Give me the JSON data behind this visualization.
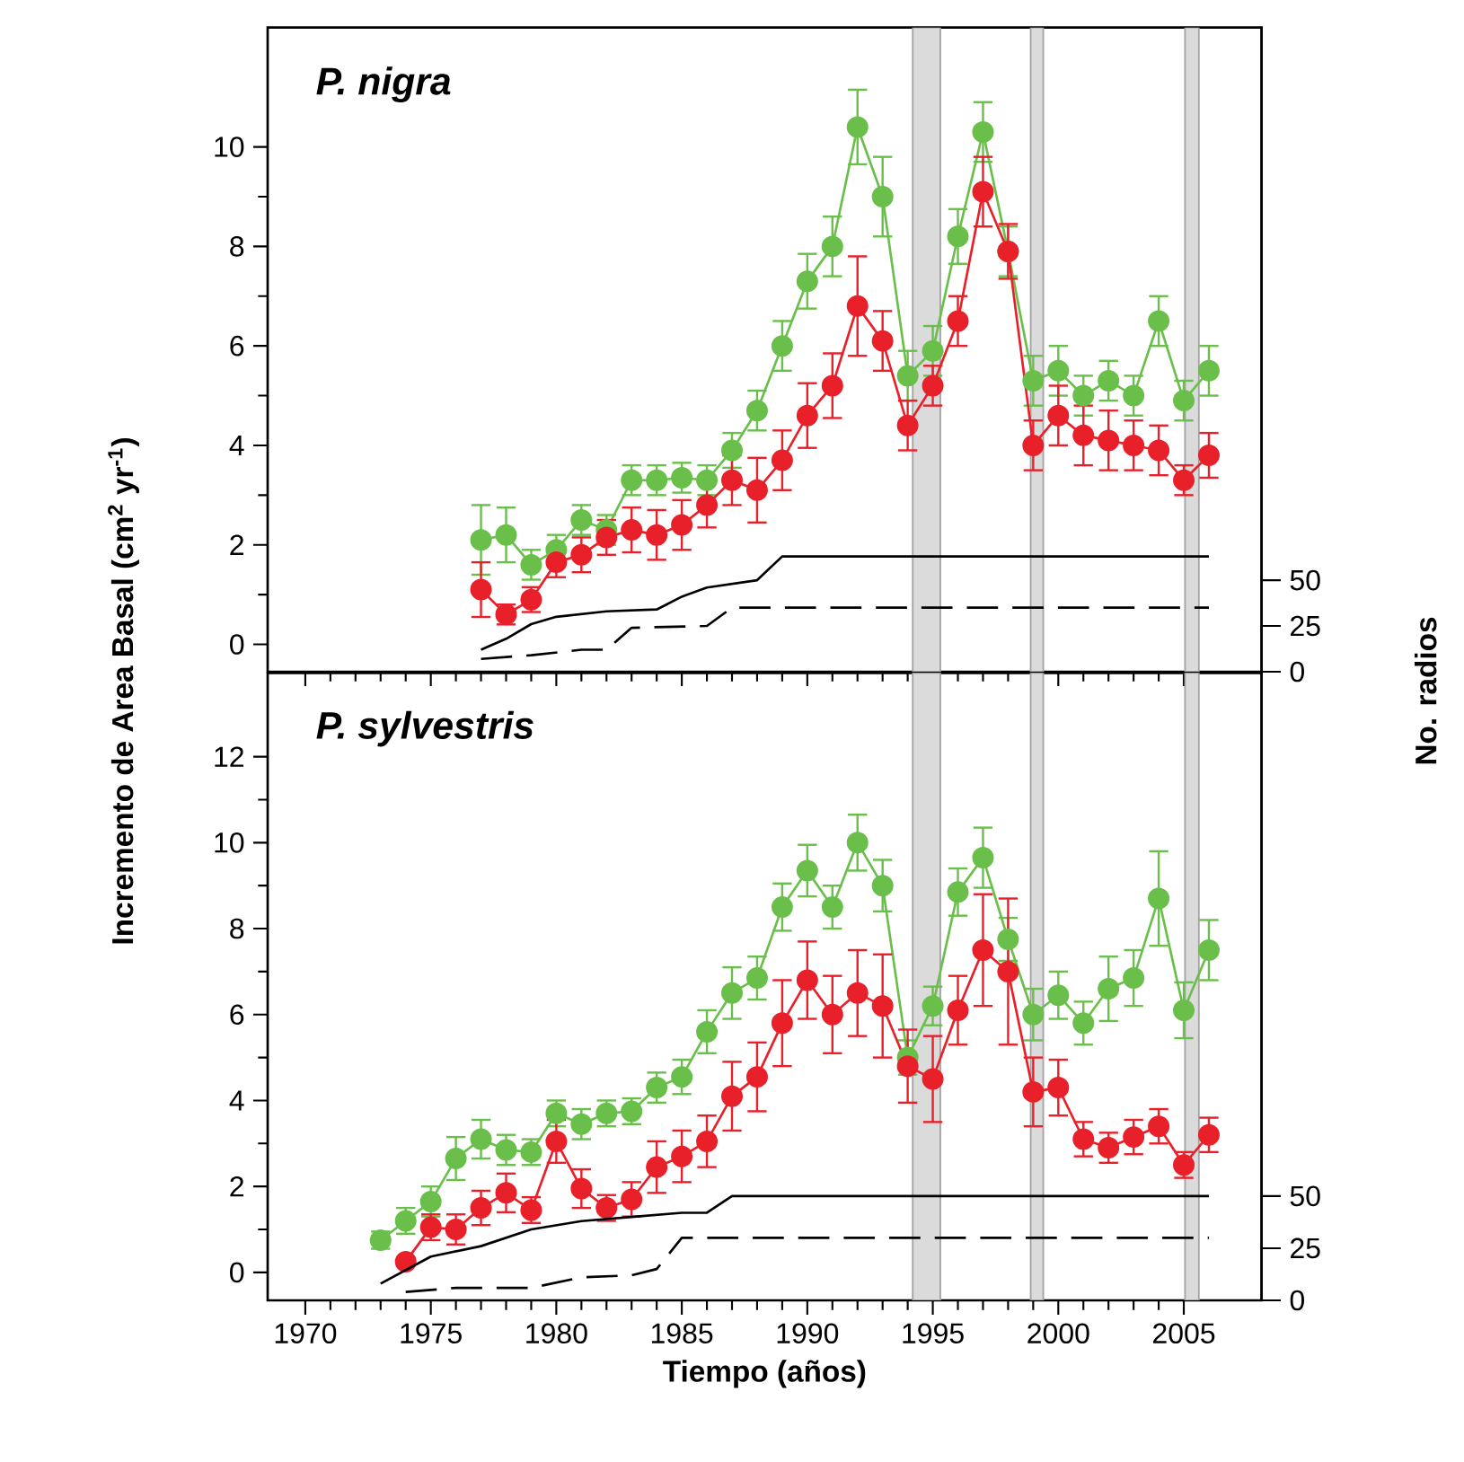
{
  "chart_data": [
    {
      "type": "line",
      "title": "P. nigra",
      "ylabel": "Incremento de Area Basal (cm$^{2}$ yr$^{-1}$)",
      "y2label": "No. radios",
      "xlim": [
        1968.5,
        2008.1
      ],
      "ylim": [
        -0.55,
        12.4
      ],
      "y2lim": [
        0,
        352
      ],
      "xticks": [
        1970,
        1975,
        1980,
        1985,
        1990,
        1995,
        2000,
        2005
      ],
      "yticks": [
        0,
        2,
        4,
        6,
        8,
        10
      ],
      "y2ticks": [
        0,
        25,
        50
      ],
      "tick_labels": "y",
      "marker": "circle",
      "bands": [
        {
          "axis": "x",
          "from": 1994.2,
          "to": 1995.3,
          "color": "#dbdbdb"
        },
        {
          "axis": "x",
          "from": 1998.9,
          "to": 1999.4,
          "color": "#dbdbdb"
        },
        {
          "axis": "x",
          "from": 2005.05,
          "to": 2005.6,
          "color": "#dbdbdb"
        }
      ],
      "series": [
        {
          "color": "#6abf4b",
          "x": [
            1977,
            1978,
            1979,
            1980,
            1981,
            1982,
            1983,
            1984,
            1985,
            1986,
            1987,
            1988,
            1989,
            1990,
            1991,
            1992,
            1993,
            1994,
            1995,
            1996,
            1997,
            1998,
            1999,
            2000,
            2001,
            2002,
            2003,
            2004,
            2005,
            2006
          ],
          "values": [
            2.1,
            2.2,
            1.6,
            1.9,
            2.5,
            2.3,
            3.3,
            3.3,
            3.35,
            3.3,
            3.9,
            4.7,
            6.0,
            7.3,
            8.0,
            10.4,
            9.0,
            5.4,
            5.9,
            8.2,
            10.3,
            7.9,
            5.3,
            5.5,
            5.0,
            5.3,
            5.0,
            6.5,
            4.9,
            5.5
          ],
          "errors": [
            0.7,
            0.55,
            0.3,
            0.3,
            0.3,
            0.3,
            0.3,
            0.3,
            0.3,
            0.3,
            0.35,
            0.4,
            0.5,
            0.55,
            0.6,
            0.75,
            0.8,
            0.5,
            0.5,
            0.55,
            0.6,
            0.5,
            0.5,
            0.5,
            0.4,
            0.4,
            0.4,
            0.5,
            0.4,
            0.5
          ]
        },
        {
          "color": "#e8202a",
          "x": [
            1977,
            1978,
            1979,
            1980,
            1981,
            1982,
            1983,
            1984,
            1985,
            1986,
            1987,
            1988,
            1989,
            1990,
            1991,
            1992,
            1993,
            1994,
            1995,
            1996,
            1997,
            1998,
            1999,
            2000,
            2001,
            2002,
            2003,
            2004,
            2005,
            2006
          ],
          "values": [
            1.1,
            0.6,
            0.9,
            1.65,
            1.8,
            2.15,
            2.3,
            2.2,
            2.4,
            2.8,
            3.3,
            3.1,
            3.7,
            4.6,
            5.2,
            6.8,
            6.1,
            4.4,
            5.2,
            6.5,
            9.1,
            7.9,
            4.0,
            4.6,
            4.2,
            4.1,
            4.0,
            3.9,
            3.3,
            3.8
          ],
          "errors": [
            0.55,
            0.2,
            0.25,
            0.3,
            0.35,
            0.35,
            0.45,
            0.5,
            0.5,
            0.45,
            0.5,
            0.65,
            0.6,
            0.65,
            0.65,
            1.0,
            0.6,
            0.5,
            0.4,
            0.5,
            0.7,
            0.55,
            0.5,
            0.6,
            0.6,
            0.6,
            0.5,
            0.5,
            0.3,
            0.45
          ]
        },
        {
          "color": "#000000",
          "axis": "y2",
          "marker": "none",
          "line_style": "solid",
          "x": [
            1977,
            1978,
            1979,
            1980,
            1982,
            1984,
            1985,
            1986,
            1988,
            1989,
            2006
          ],
          "values": [
            12,
            18,
            26,
            30,
            33,
            34,
            41,
            46,
            50,
            63,
            63
          ]
        },
        {
          "color": "#000000",
          "axis": "y2",
          "marker": "none",
          "line_style": "dashed",
          "x": [
            1977,
            1979,
            1981,
            1982,
            1983,
            1986,
            1987,
            2006
          ],
          "values": [
            7,
            9,
            12,
            12,
            24,
            25,
            35,
            35
          ]
        }
      ]
    },
    {
      "type": "line",
      "title": "P. sylvestris",
      "xlabel": "Tiempo (años)",
      "xlim": [
        1968.5,
        2008.1
      ],
      "ylim": [
        -0.65,
        13.95
      ],
      "y2lim": [
        0,
        301
      ],
      "xticks": [
        1970,
        1975,
        1980,
        1985,
        1990,
        1995,
        2000,
        2005
      ],
      "yticks": [
        0,
        2,
        4,
        6,
        8,
        10,
        12
      ],
      "y2ticks": [
        0,
        25,
        50
      ],
      "marker": "circle",
      "bands": [
        {
          "axis": "x",
          "from": 1994.2,
          "to": 1995.3,
          "color": "#dbdbdb"
        },
        {
          "axis": "x",
          "from": 1998.9,
          "to": 1999.4,
          "color": "#dbdbdb"
        },
        {
          "axis": "x",
          "from": 2005.05,
          "to": 2005.6,
          "color": "#dbdbdb"
        }
      ],
      "series": [
        {
          "color": "#6abf4b",
          "x": [
            1973,
            1974,
            1975,
            1976,
            1977,
            1978,
            1979,
            1980,
            1981,
            1982,
            1983,
            1984,
            1985,
            1986,
            1987,
            1988,
            1989,
            1990,
            1991,
            1992,
            1993,
            1994,
            1995,
            1996,
            1997,
            1998,
            1999,
            2000,
            2001,
            2002,
            2003,
            2004,
            2005,
            2006
          ],
          "values": [
            0.75,
            1.2,
            1.65,
            2.65,
            3.1,
            2.85,
            2.8,
            3.7,
            3.45,
            3.7,
            3.75,
            4.3,
            4.55,
            5.6,
            6.5,
            6.85,
            8.5,
            9.35,
            8.5,
            10.0,
            9.0,
            5.0,
            6.2,
            8.85,
            9.65,
            7.75,
            6.0,
            6.45,
            5.8,
            6.6,
            6.85,
            8.7,
            6.1,
            7.5
          ],
          "errors": [
            0.2,
            0.3,
            0.35,
            0.5,
            0.45,
            0.35,
            0.3,
            0.3,
            0.35,
            0.3,
            0.3,
            0.35,
            0.4,
            0.5,
            0.6,
            0.5,
            0.55,
            0.6,
            0.5,
            0.65,
            0.6,
            0.4,
            0.45,
            0.55,
            0.7,
            0.5,
            0.6,
            0.55,
            0.5,
            0.75,
            0.65,
            1.1,
            0.65,
            0.7
          ]
        },
        {
          "color": "#e8202a",
          "x": [
            1974,
            1975,
            1976,
            1977,
            1978,
            1979,
            1980,
            1981,
            1982,
            1983,
            1984,
            1985,
            1986,
            1987,
            1988,
            1989,
            1990,
            1991,
            1992,
            1993,
            1994,
            1995,
            1996,
            1997,
            1998,
            1999,
            2000,
            2001,
            2002,
            2003,
            2004,
            2005,
            2006
          ],
          "values": [
            0.25,
            1.05,
            1.0,
            1.5,
            1.85,
            1.45,
            3.05,
            1.95,
            1.5,
            1.7,
            2.45,
            2.7,
            3.05,
            4.1,
            4.55,
            5.8,
            6.8,
            6.0,
            6.5,
            6.2,
            4.8,
            4.5,
            6.1,
            7.5,
            7.0,
            4.2,
            4.3,
            3.1,
            2.9,
            3.15,
            3.4,
            2.5,
            3.2
          ],
          "errors": [
            0.1,
            0.3,
            0.35,
            0.4,
            0.45,
            0.3,
            0.5,
            0.45,
            0.3,
            0.4,
            0.6,
            0.6,
            0.6,
            0.8,
            0.8,
            1.0,
            0.9,
            0.9,
            1.0,
            1.2,
            0.85,
            1.0,
            0.8,
            1.3,
            1.7,
            0.8,
            0.65,
            0.4,
            0.35,
            0.4,
            0.4,
            0.3,
            0.4
          ]
        },
        {
          "color": "#000000",
          "axis": "y2",
          "marker": "none",
          "line_style": "solid",
          "x": [
            1973,
            1975,
            1977,
            1979,
            1981,
            1983,
            1985,
            1986,
            1987,
            2006
          ],
          "values": [
            8,
            21,
            26,
            34,
            38,
            40,
            42,
            42,
            50,
            50
          ]
        },
        {
          "color": "#000000",
          "axis": "y2",
          "marker": "none",
          "line_style": "dashed",
          "x": [
            1974,
            1976,
            1979,
            1981,
            1983,
            1984,
            1985,
            2006
          ],
          "values": [
            4,
            6,
            6,
            11,
            12,
            15,
            30,
            30
          ]
        }
      ]
    }
  ]
}
